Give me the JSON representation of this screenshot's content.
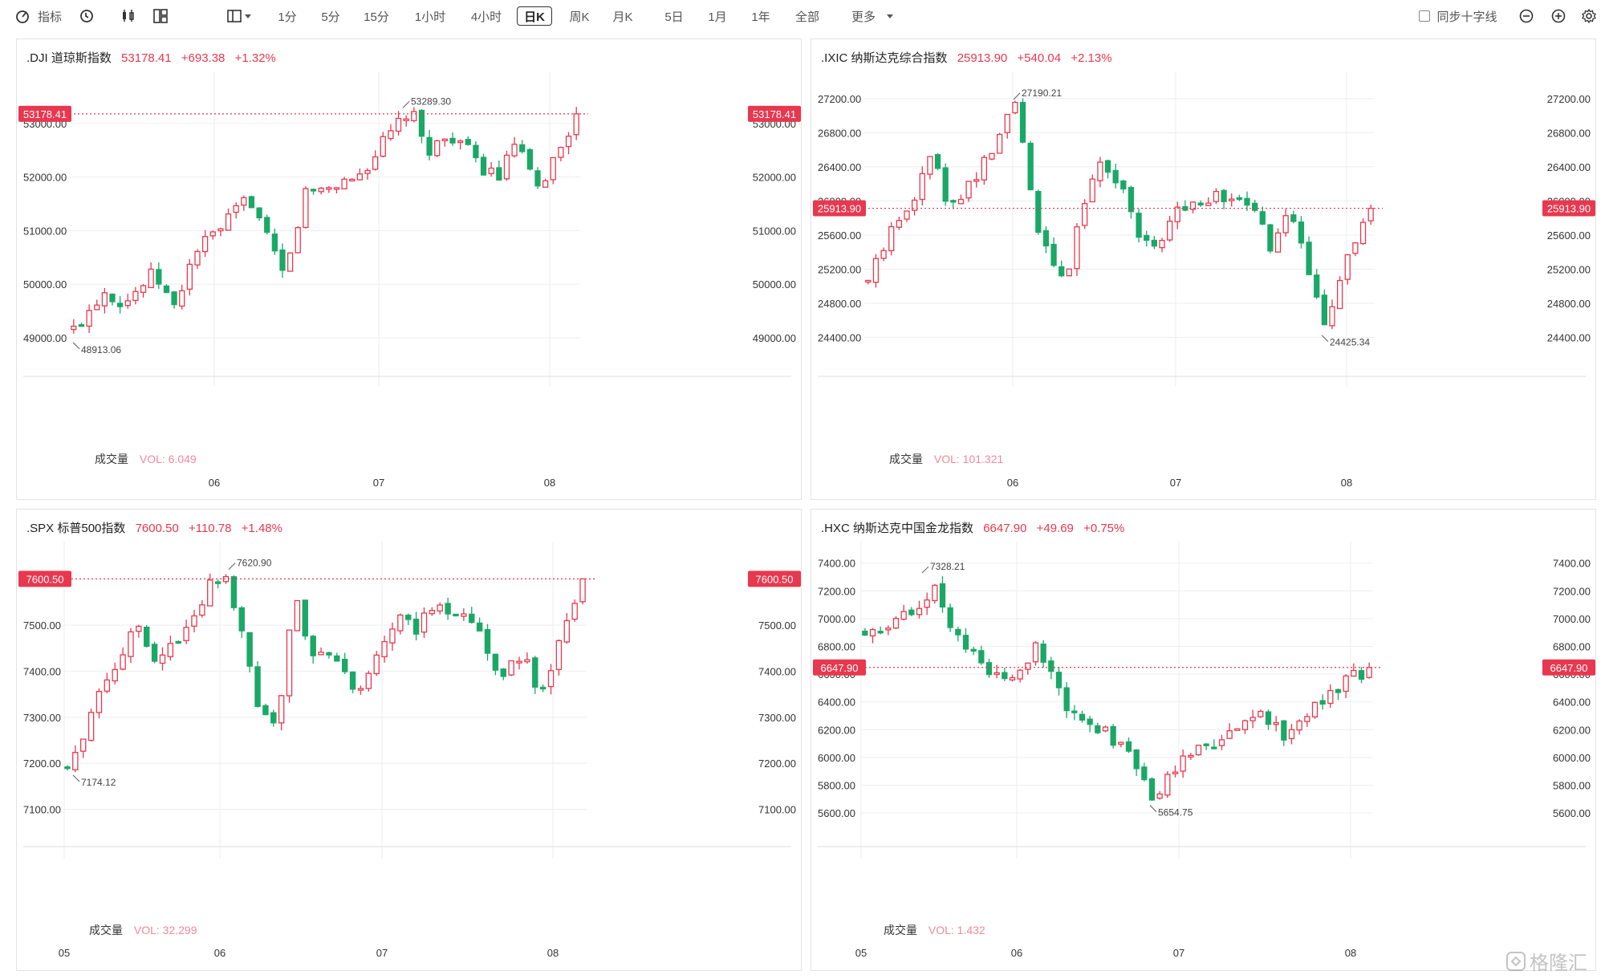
{
  "toolbar": {
    "indicator_label": "指标",
    "periods": [
      "1分",
      "5分",
      "15分",
      "1小时",
      "4小时",
      "日K",
      "周K",
      "月K",
      "5日",
      "1月",
      "1年",
      "全部"
    ],
    "active_period": "日K",
    "more_label": "更多",
    "crosshair_label": "同步十字线"
  },
  "colors": {
    "up": "#e8384f",
    "down": "#1aa867",
    "grid": "#eeeeee",
    "price_line": "#e8384f"
  },
  "volume_label": "成交量",
  "panels": [
    {
      "name": ".DJI 道琼斯指数",
      "price": "53178.41",
      "change": "+693.38",
      "pct": "+1.32%",
      "last_tag": "53178.41",
      "volume": "VOL: 6.049",
      "y_ticks": [
        "53000.00",
        "52000.00",
        "51000.00",
        "50000.00",
        "49000.00"
      ],
      "x_ticks": [
        "06",
        "07",
        "08"
      ],
      "high_label": "53289.30",
      "low_label": "48913.06",
      "chart_data": {
        "type": "candlestick",
        "y_range": [
          48850,
          53700
        ],
        "y_tick_values": [
          53000,
          52000,
          51000,
          50000,
          49000
        ],
        "last_price": 53178.41,
        "high": 53289.3,
        "low": 48913.06
      }
    },
    {
      "name": ".IXIC 纳斯达克综合指数",
      "price": "25913.90",
      "change": "+540.04",
      "pct": "+2.13%",
      "last_tag": "25913.90",
      "volume": "VOL: 101.321",
      "y_ticks": [
        "27200.00",
        "26800.00",
        "26400.00",
        "26000.00",
        "25600.00",
        "25200.00",
        "24800.00",
        "24400.00"
      ],
      "x_ticks": [
        "06",
        "07",
        "08"
      ],
      "high_label": "27190.21",
      "low_label": "24425.34",
      "chart_data": {
        "type": "candlestick",
        "y_range": [
          24300,
          27350
        ],
        "y_tick_values": [
          27200,
          26800,
          26400,
          26000,
          25600,
          25200,
          24800,
          24400
        ],
        "last_price": 25913.9,
        "high": 27190.21,
        "low": 24425.34
      }
    },
    {
      "name": ".SPX 标普500指数",
      "price": "7600.50",
      "change": "+110.78",
      "pct": "+1.48%",
      "last_tag": "7600.50",
      "volume": "VOL: 32.299",
      "y_ticks": [
        "7500.00",
        "7400.00",
        "7300.00",
        "7200.00",
        "7100.00"
      ],
      "x_ticks": [
        "05",
        "06",
        "07",
        "08"
      ],
      "high_label": "7620.90",
      "low_label": "7174.12",
      "chart_data": {
        "type": "candlestick",
        "y_range": [
          7080,
          7650
        ],
        "y_tick_values": [
          7500,
          7400,
          7300,
          7200,
          7100
        ],
        "last_price": 7600.5,
        "high": 7620.9,
        "low": 7174.12
      }
    },
    {
      "name": ".HXC 纳斯达克中国金龙指数",
      "price": "6647.90",
      "change": "+49.69",
      "pct": "+0.75%",
      "last_tag": "6647.90",
      "volume": "VOL: 1.432",
      "y_ticks": [
        "7400.00",
        "7200.00",
        "7000.00",
        "6800.00",
        "6600.00",
        "6400.00",
        "6200.00",
        "6000.00",
        "5800.00",
        "5600.00"
      ],
      "x_ticks": [
        "05",
        "06",
        "07",
        "08"
      ],
      "high_label": "7328.21",
      "low_label": "5654.75",
      "chart_data": {
        "type": "candlestick",
        "y_range": [
          5560,
          7450
        ],
        "y_tick_values": [
          7400,
          7200,
          7000,
          6800,
          6600,
          6400,
          6200,
          6000,
          5800,
          5600
        ],
        "last_price": 6647.9,
        "high": 7328.21,
        "low": 5654.75
      }
    }
  ],
  "watermark": "格隆汇"
}
